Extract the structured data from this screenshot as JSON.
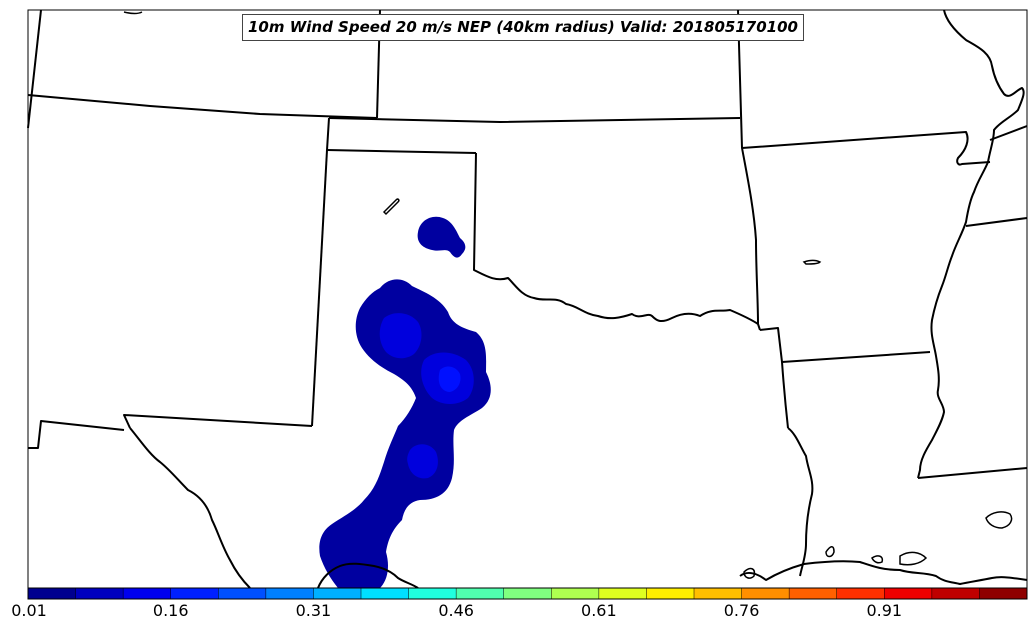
{
  "title": "10m Wind Speed 20 m/s NEP (40km radius) Valid: 201805170100",
  "colorbar": {
    "colors": [
      "#00008f",
      "#0000bf",
      "#0000ef",
      "#0020ff",
      "#0050ff",
      "#0080ff",
      "#00b0ff",
      "#00e0ff",
      "#20ffdf",
      "#50ffaf",
      "#80ff80",
      "#afff50",
      "#dfff20",
      "#ffef00",
      "#ffbf00",
      "#ff8f00",
      "#ff6000",
      "#ff3000",
      "#ef0000",
      "#bf0000",
      "#8f0000"
    ],
    "tick_labels": [
      "0.01",
      "0.16",
      "0.31",
      "0.46",
      "0.61",
      "0.76",
      "0.91"
    ]
  },
  "probability_field": {
    "base_level_color": "#0000a0",
    "mid_level_color": "#0000dd",
    "high_level_color": "#0010ff"
  }
}
